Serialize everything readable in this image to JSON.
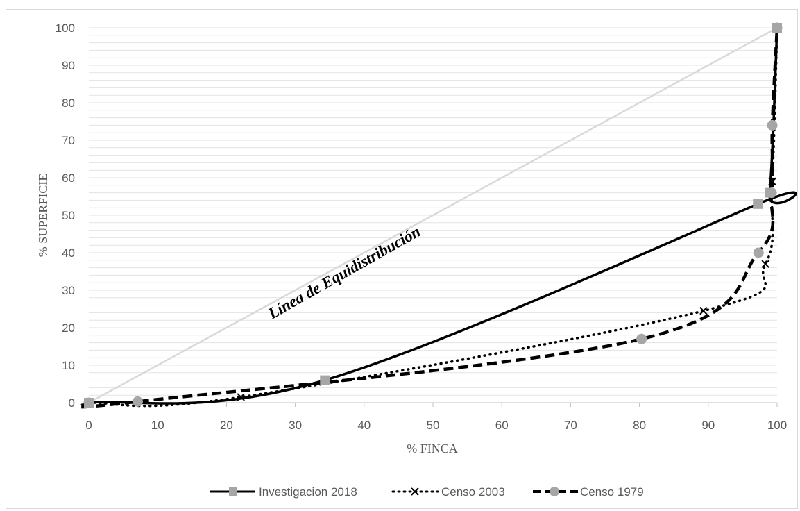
{
  "chart_data": {
    "type": "line",
    "xlabel": "% FINCA",
    "ylabel": "% SUPERFICIE",
    "xlim": [
      0,
      100
    ],
    "ylim": [
      0,
      100
    ],
    "x_ticks": [
      "0",
      "10",
      "20",
      "30",
      "40",
      "50",
      "60",
      "70",
      "80",
      "90",
      "100"
    ],
    "y_ticks": [
      "0",
      "10",
      "20",
      "30",
      "40",
      "50",
      "60",
      "70",
      "80",
      "90",
      "100"
    ],
    "grid": "horizontal minor lines every 2 units",
    "legend_position": "bottom",
    "annotation": "Línea de Equidistribución",
    "equidistribution_line": {
      "x": [
        0,
        100
      ],
      "y": [
        0,
        100
      ],
      "color": "#d9d9d9"
    },
    "series": [
      {
        "name": "Investigacion 2018",
        "style": "solid",
        "marker": "square",
        "color": "#000000",
        "marker_color": "#a6a6a6",
        "x": [
          0,
          34.3,
          97.2,
          98.9,
          100
        ],
        "y": [
          0,
          6,
          53,
          56,
          100
        ]
      },
      {
        "name": "Censo 2003",
        "style": "dotted",
        "marker": "x",
        "color": "#000000",
        "marker_color": "#000000",
        "x": [
          0,
          22.1,
          89.3,
          98.3,
          99.3,
          100
        ],
        "y": [
          0,
          1.5,
          24.5,
          37,
          59,
          100
        ]
      },
      {
        "name": "Censo 1979",
        "style": "dashed",
        "marker": "circle",
        "color": "#000000",
        "marker_color": "#a6a6a6",
        "x": [
          0,
          7.1,
          80.3,
          97.3,
          99.2,
          99.3,
          100
        ],
        "y": [
          0,
          0.3,
          17,
          40,
          56,
          74,
          100
        ]
      }
    ]
  }
}
